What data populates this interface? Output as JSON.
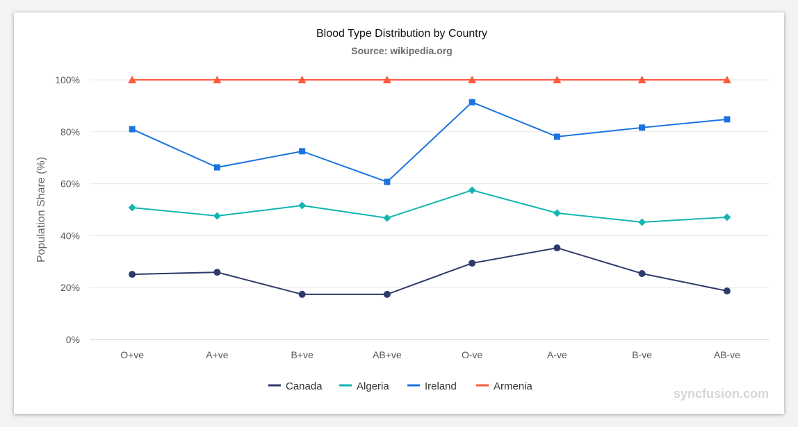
{
  "chart_data": {
    "type": "line",
    "title": "Blood Type Distribution by Country",
    "subtitle": "Source: wikipedia.org",
    "xlabel": "",
    "ylabel": "Population Share (%)",
    "ylim": [
      0,
      100
    ],
    "yticks": [
      "0%",
      "20%",
      "40%",
      "60%",
      "80%",
      "100%"
    ],
    "categories": [
      "O+ve",
      "A+ve",
      "B+ve",
      "AB+ve",
      "O-ve",
      "A-ve",
      "B-ve",
      "AB-ve"
    ],
    "grid": true,
    "legend": "bottom",
    "series": [
      {
        "name": "Canada",
        "color": "#2e3a6b",
        "marker": "circle",
        "values": [
          25.1,
          25.9,
          17.4,
          17.4,
          29.4,
          35.3,
          25.4,
          18.7
        ]
      },
      {
        "name": "Algeria",
        "color": "#13b5b1",
        "marker": "diamond",
        "values": [
          50.8,
          47.6,
          51.6,
          46.8,
          57.5,
          48.7,
          45.2,
          47.1
        ]
      },
      {
        "name": "Ireland",
        "color": "#1a73e0",
        "marker": "square",
        "values": [
          81.0,
          66.3,
          72.5,
          60.7,
          91.4,
          78.1,
          81.6,
          84.8
        ]
      },
      {
        "name": "Armenia",
        "color": "#ff5a3c",
        "marker": "triangle",
        "values": [
          100,
          100,
          100,
          100,
          100,
          100,
          100,
          100
        ]
      }
    ]
  },
  "watermark": "syncfusion.com"
}
